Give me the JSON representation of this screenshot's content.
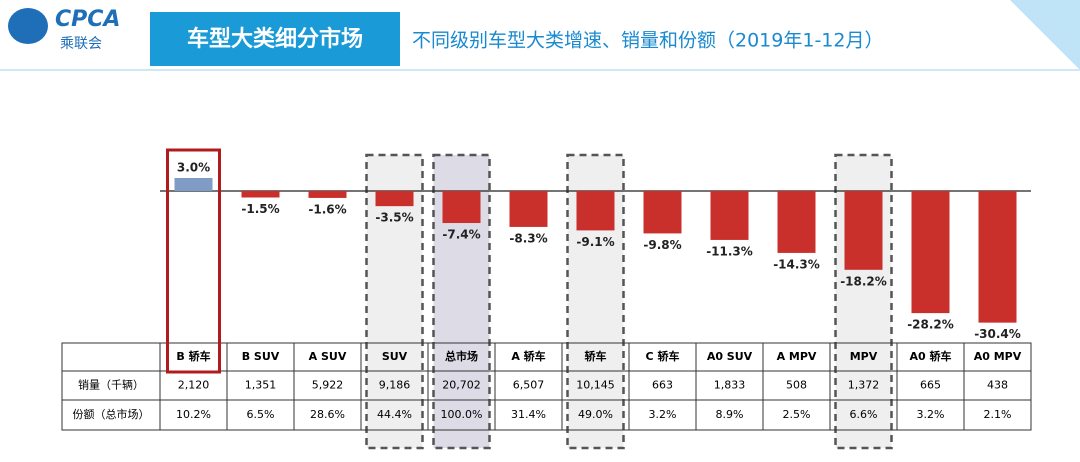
{
  "header": {
    "logo": "CPCA",
    "logo_sub": "乘联会",
    "title": "车型大类细分市场",
    "subtitle": "不同级别车型大类增速、销量和份额（2019年1-12月）"
  },
  "chart_data": {
    "type": "bar",
    "categories": [
      "B 轿车",
      "B SUV",
      "A SUV",
      "SUV",
      "总市场",
      "A 轿车",
      "轿车",
      "C 轿车",
      "A0 SUV",
      "A MPV",
      "MPV",
      "A0 轿车",
      "A0 MPV"
    ],
    "values": [
      3.0,
      -1.5,
      -1.6,
      -3.5,
      -7.4,
      -8.3,
      -9.1,
      -9.8,
      -11.3,
      -14.3,
      -18.2,
      -28.2,
      -30.4
    ],
    "value_labels": [
      "3.0%",
      "-1.5%",
      "-1.6%",
      "-3.5%",
      "-7.4%",
      "-8.3%",
      "-9.1%",
      "-9.8%",
      "-11.3%",
      "-14.3%",
      "-18.2%",
      "-28.2%",
      "-30.4%"
    ],
    "colors": {
      "positive": "#7f9cc6",
      "negative": "#c9302c"
    }
  },
  "table": {
    "row_labels": [
      "销量（千辆）",
      "份额（总市场）"
    ],
    "rows": [
      [
        "2,120",
        "1,351",
        "5,922",
        "9,186",
        "20,702",
        "6,507",
        "10,145",
        "663",
        "1,833",
        "508",
        "1,372",
        "665",
        "438"
      ],
      [
        "10.2%",
        "6.5%",
        "28.6%",
        "44.4%",
        "100.0%",
        "31.4%",
        "49.0%",
        "3.2%",
        "8.9%",
        "2.5%",
        "6.6%",
        "3.2%",
        "2.1%"
      ]
    ]
  }
}
